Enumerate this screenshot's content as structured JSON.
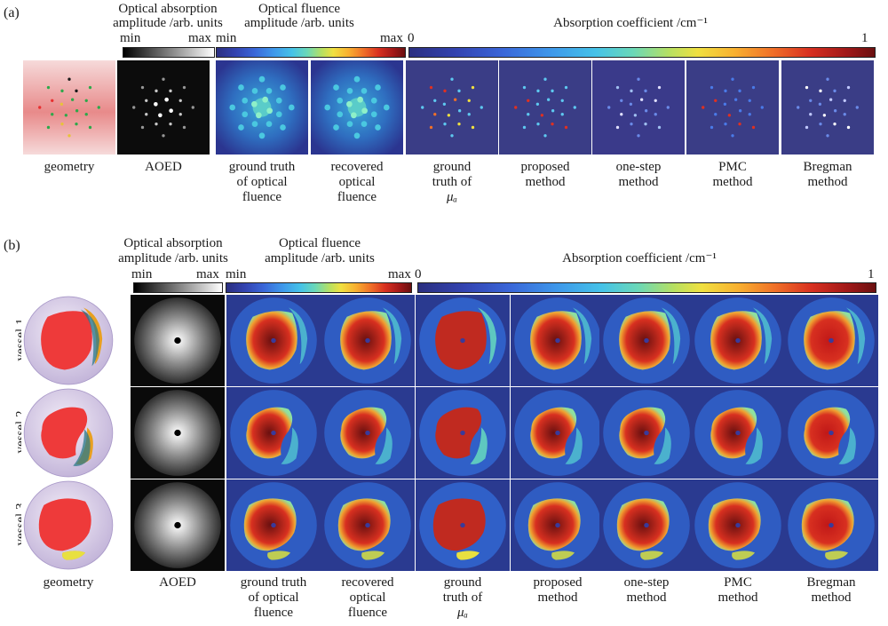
{
  "panel_a": {
    "label": "(a)",
    "colorbars": {
      "absorption_amp": {
        "title_line1": "Optical absorption",
        "title_line2": "amplitude /arb. units",
        "min": "min",
        "max": "max"
      },
      "fluence_amp": {
        "title_line1": "Optical fluence",
        "title_line2": "amplitude /arb. units",
        "min": "min",
        "max": "max"
      },
      "abs_coeff": {
        "title": "Absorption coefficient /cm⁻¹",
        "min": "0",
        "max": "1"
      }
    },
    "captions": [
      [
        "geometry"
      ],
      [
        "AOED"
      ],
      [
        "ground truth",
        "of optical",
        "fluence"
      ],
      [
        "recovered",
        "optical",
        "fluence"
      ],
      [
        "ground",
        "truth of",
        "μₐ"
      ],
      [
        "proposed",
        "method"
      ],
      [
        "one-step",
        "method"
      ],
      [
        "PMC",
        "method"
      ],
      [
        "Bregman",
        "method"
      ]
    ]
  },
  "panel_b": {
    "label": "(b)",
    "colorbars": {
      "absorption_amp": {
        "title_line1": "Optical absorption",
        "title_line2": "amplitude /arb. units",
        "min": "min",
        "max": "max"
      },
      "fluence_amp": {
        "title_line1": "Optical fluence",
        "title_line2": "amplitude /arb. units",
        "min": "min",
        "max": "max"
      },
      "abs_coeff": {
        "title": "Absorption coefficient /cm⁻¹",
        "min": "0",
        "max": "1"
      }
    },
    "rows": [
      "vessel 1",
      "vessel 2",
      "vessel 3"
    ],
    "captions": [
      [
        "geometry"
      ],
      [
        "AOED"
      ],
      [
        "ground truth",
        "of optical",
        "fluence"
      ],
      [
        "recovered",
        "optical",
        "fluence"
      ],
      [
        "ground",
        "truth of",
        "μₐ"
      ],
      [
        "proposed",
        "method"
      ],
      [
        "one-step",
        "method"
      ],
      [
        "PMC",
        "method"
      ],
      [
        "Bregman",
        "method"
      ]
    ]
  },
  "colors": {
    "jet_dark": "#2a2c7a",
    "jet_red": "#d8302a",
    "jet_deep": "#6e1010",
    "geometry_red": "#ee3a3a",
    "background_navy": "#3a3d86"
  }
}
